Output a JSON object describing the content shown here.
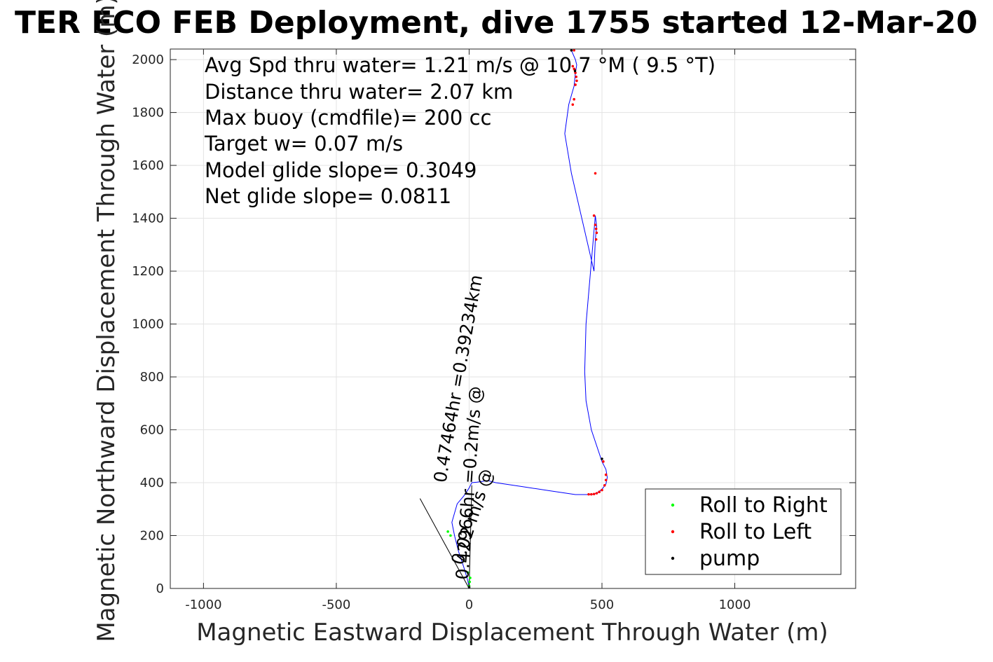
{
  "chart_data": {
    "type": "line",
    "title": "TER ECO FEB Deployment, dive 1755 started 12-Mar-20",
    "xlabel": "Magnetic Eastward Displacement Through Water (m)",
    "ylabel": "Magnetic Northward Displacement Through Water (m)",
    "xlim": [
      -1125,
      1455
    ],
    "ylim": [
      0,
      2040
    ],
    "xticks": [
      -1000,
      -500,
      0,
      500,
      1000
    ],
    "yticks": [
      0,
      200,
      400,
      600,
      800,
      1000,
      1200,
      1400,
      1600,
      1800,
      2000
    ],
    "grid": true,
    "annotations": [
      "Avg Spd thru water=  1.21 m/s @  10.7 °M (  9.5 °T)",
      "Distance thru water=  2.07 km",
      "Max buoy (cmdfile)= 200 cc",
      "Target w= 0.07 m/s",
      "Model glide slope= 0.3049",
      "Net glide slope= 0.0811"
    ],
    "rotated_labels": [
      "0.42966hr =0.2m/s @",
      "0.47464hr =0.39234km",
      "0.02 m/s @"
    ],
    "series": [
      {
        "name": "",
        "color": "#0000ff",
        "x": [
          0,
          -5,
          -20,
          -40,
          -55,
          -65,
          -45,
          -20,
          0,
          10,
          30,
          50,
          70,
          100,
          200,
          300,
          400,
          460,
          480,
          500,
          515,
          520,
          515,
          500,
          460,
          440,
          435,
          440,
          475,
          480,
          475,
          470,
          385,
          360,
          375,
          395,
          400,
          405,
          400,
          385
        ],
        "y": [
          0,
          30,
          80,
          140,
          200,
          250,
          320,
          350,
          380,
          400,
          402,
          405,
          408,
          400,
          385,
          370,
          355,
          355,
          360,
          375,
          395,
          420,
          450,
          480,
          600,
          710,
          820,
          1000,
          1410,
          1370,
          1320,
          1200,
          1570,
          1720,
          1830,
          1900,
          1950,
          1980,
          2000,
          2035
        ]
      }
    ],
    "legend": {
      "placement": "bottom-right",
      "entries": [
        {
          "name": "Roll to Right",
          "color": "#00ff00"
        },
        {
          "name": "Roll to Left",
          "color": "#ff0000"
        },
        {
          "name": "pump",
          "color": "#000000"
        }
      ]
    },
    "markers": {
      "roll_right": {
        "color": "#00ff00",
        "x": [
          0,
          2,
          4,
          -5,
          -70,
          -80
        ],
        "y": [
          10,
          25,
          40,
          60,
          200,
          215
        ]
      },
      "roll_left": {
        "color": "#ff0000",
        "x": [
          390,
          395,
          400,
          405,
          403,
          400,
          398,
          395,
          390,
          470,
          475,
          478,
          480,
          478,
          475,
          450,
          460,
          470,
          480,
          490,
          500,
          510,
          515,
          515,
          505,
          395
        ],
        "y": [
          1830,
          1850,
          1905,
          1920,
          1935,
          1950,
          1960,
          1965,
          1975,
          1410,
          1375,
          1360,
          1345,
          1320,
          1570,
          356,
          356,
          357,
          360,
          365,
          372,
          390,
          410,
          430,
          480,
          2035
        ]
      },
      "pump": {
        "color": "#000000",
        "x": [
          500,
          0,
          385
        ],
        "y": [
          490,
          5,
          2035
        ]
      }
    },
    "black_lines": [
      {
        "x": [
          0,
          -185
        ],
        "y": [
          0,
          340
        ]
      },
      {
        "x": [
          0,
          10
        ],
        "y": [
          0,
          390
        ]
      }
    ]
  }
}
